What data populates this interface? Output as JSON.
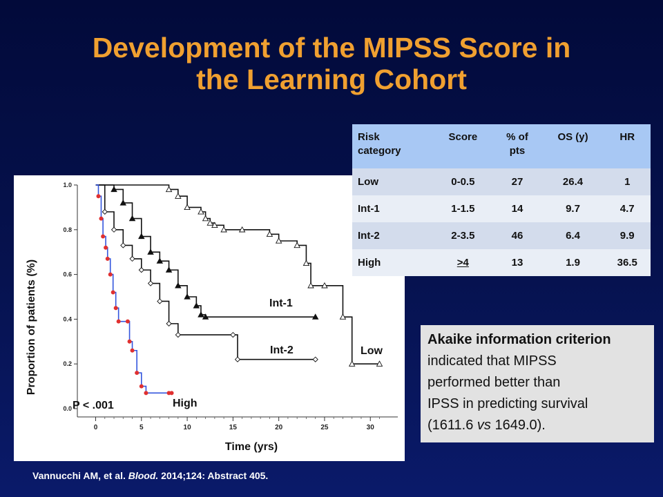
{
  "slide": {
    "title_line1": "Development of the MIPSS Score in",
    "title_line2": "the Learning Cohort",
    "citation": {
      "authors": "Vannucchi AM, et al. ",
      "journal": "Blood.",
      "rest": " 2014;124: Abstract 405."
    },
    "colors": {
      "title": "#f0a030",
      "background": "#06124f",
      "high_curve": "#3355dd",
      "high_markers": "#e03030"
    }
  },
  "table": {
    "headers": [
      [
        "Risk",
        "category"
      ],
      [
        "Score"
      ],
      [
        "% of",
        "pts"
      ],
      [
        "OS  (y)"
      ],
      [
        "HR"
      ]
    ],
    "rows": [
      [
        "Low",
        "0-0.5",
        "27",
        "26.4",
        "1"
      ],
      [
        "Int-1",
        "1-1.5",
        "14",
        "9.7",
        "4.7"
      ],
      [
        "Int-2",
        "2-3.5",
        "46",
        "6.4",
        "9.9"
      ],
      [
        "High",
        ">4",
        "13",
        "1.9",
        "36.5"
      ]
    ]
  },
  "aic": {
    "bold_line": "Akaike information criterion",
    "line2": "indicated that MIPSS",
    "line3": "performed better than",
    "line4": "IPSS in predicting survival",
    "line5_pre": "(1611.6 ",
    "line5_italic": "vs",
    "line5_post": " 1649.0)."
  },
  "chart_data": {
    "type": "line",
    "xlabel": "Time (yrs)",
    "ylabel": "Proportion of patients (%)",
    "xlim": [
      -2,
      33
    ],
    "ylim": [
      0,
      1.0
    ],
    "xticks": [
      0,
      5,
      10,
      15,
      20,
      25,
      30
    ],
    "yticks": [
      "0.0",
      "0.2",
      "0.4",
      "0.6",
      "0.8",
      "1.0"
    ],
    "annotation": "P < .001",
    "series": [
      {
        "name": "Low",
        "color": "#111111",
        "marker": "triangle-open",
        "points": [
          [
            0,
            1.0
          ],
          [
            8,
            0.98
          ],
          [
            9,
            0.95
          ],
          [
            10,
            0.9
          ],
          [
            11.5,
            0.88
          ],
          [
            12,
            0.85
          ],
          [
            12.5,
            0.83
          ],
          [
            13,
            0.82
          ],
          [
            14,
            0.8
          ],
          [
            16,
            0.8
          ],
          [
            19,
            0.78
          ],
          [
            20,
            0.75
          ],
          [
            22,
            0.73
          ],
          [
            23,
            0.65
          ],
          [
            23.5,
            0.55
          ],
          [
            25,
            0.55
          ],
          [
            27,
            0.41
          ],
          [
            28,
            0.2
          ],
          [
            31,
            0.2
          ]
        ]
      },
      {
        "name": "Int-1",
        "color": "#111111",
        "marker": "triangle-filled",
        "points": [
          [
            0,
            1.0
          ],
          [
            2,
            0.98
          ],
          [
            3,
            0.92
          ],
          [
            4,
            0.85
          ],
          [
            5,
            0.77
          ],
          [
            6,
            0.7
          ],
          [
            7,
            0.66
          ],
          [
            8,
            0.62
          ],
          [
            9,
            0.55
          ],
          [
            10,
            0.5
          ],
          [
            11,
            0.46
          ],
          [
            11.5,
            0.42
          ],
          [
            12,
            0.41
          ],
          [
            24,
            0.41
          ]
        ]
      },
      {
        "name": "Int-2",
        "color": "#111111",
        "marker": "diamond-open",
        "points": [
          [
            0,
            1.0
          ],
          [
            1,
            0.88
          ],
          [
            2,
            0.8
          ],
          [
            3,
            0.73
          ],
          [
            4,
            0.67
          ],
          [
            5,
            0.62
          ],
          [
            6,
            0.56
          ],
          [
            7,
            0.48
          ],
          [
            8,
            0.38
          ],
          [
            9,
            0.33
          ],
          [
            15,
            0.33
          ],
          [
            15.5,
            0.22
          ],
          [
            24,
            0.22
          ]
        ]
      },
      {
        "name": "High",
        "color": "#3355dd",
        "marker": "circle-filled",
        "points": [
          [
            0,
            1.0
          ],
          [
            0.3,
            0.95
          ],
          [
            0.6,
            0.85
          ],
          [
            0.8,
            0.77
          ],
          [
            1.1,
            0.72
          ],
          [
            1.3,
            0.67
          ],
          [
            1.6,
            0.6
          ],
          [
            1.9,
            0.52
          ],
          [
            2.2,
            0.45
          ],
          [
            2.5,
            0.39
          ],
          [
            3.5,
            0.39
          ],
          [
            3.7,
            0.3
          ],
          [
            4,
            0.26
          ],
          [
            4.5,
            0.16
          ],
          [
            5,
            0.1
          ],
          [
            5.5,
            0.07
          ],
          [
            8,
            0.07
          ],
          [
            8.3,
            0.07
          ]
        ]
      }
    ]
  }
}
